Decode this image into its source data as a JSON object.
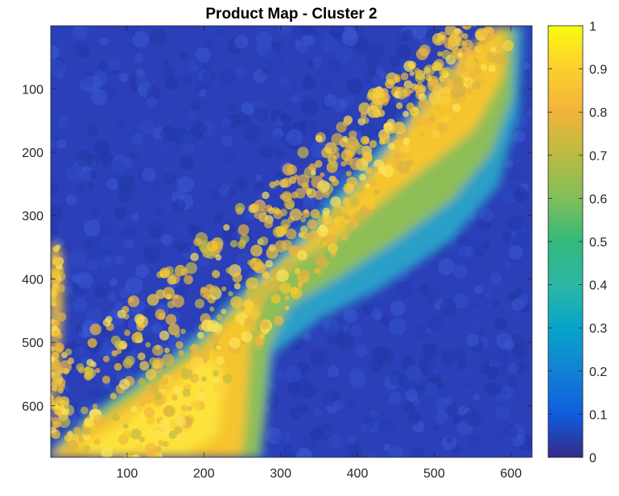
{
  "chart_data": {
    "type": "heatmap",
    "title": "Product Map - Cluster 2",
    "xlabel": "",
    "ylabel": "",
    "xlim": [
      0.5,
      627.5
    ],
    "ylim": [
      0.5,
      681.5
    ],
    "y_direction": "reverse",
    "x_ticks": [
      100,
      200,
      300,
      400,
      500,
      600
    ],
    "x_tick_labels": [
      "100",
      "200",
      "300",
      "400",
      "500",
      "600"
    ],
    "y_ticks": [
      100,
      200,
      300,
      400,
      500,
      600
    ],
    "y_tick_labels": [
      "100",
      "200",
      "300",
      "400",
      "500",
      "600"
    ],
    "colorbar": {
      "min": 0,
      "max": 1,
      "ticks": [
        0,
        0.1,
        0.2,
        0.3,
        0.4,
        0.5,
        0.6,
        0.7,
        0.8,
        0.9,
        1
      ],
      "tick_labels": [
        "0",
        "0.1",
        "0.2",
        "0.3",
        "0.4",
        "0.5",
        "0.6",
        "0.7",
        "0.8",
        "0.9",
        "1"
      ],
      "colormap": "parula",
      "placement": "right"
    },
    "grid": false,
    "regions": [
      {
        "description": "diagonal high band",
        "approx_value_range": [
          0.8,
          1.0
        ]
      },
      {
        "description": "band edges",
        "approx_value_range": [
          0.4,
          0.7
        ]
      },
      {
        "description": "background",
        "approx_value_range": [
          0.0,
          0.2
        ]
      }
    ]
  },
  "colors": {
    "background_low": "#2a3fb8",
    "high": "#f9cf2b",
    "axis": "#262626"
  }
}
